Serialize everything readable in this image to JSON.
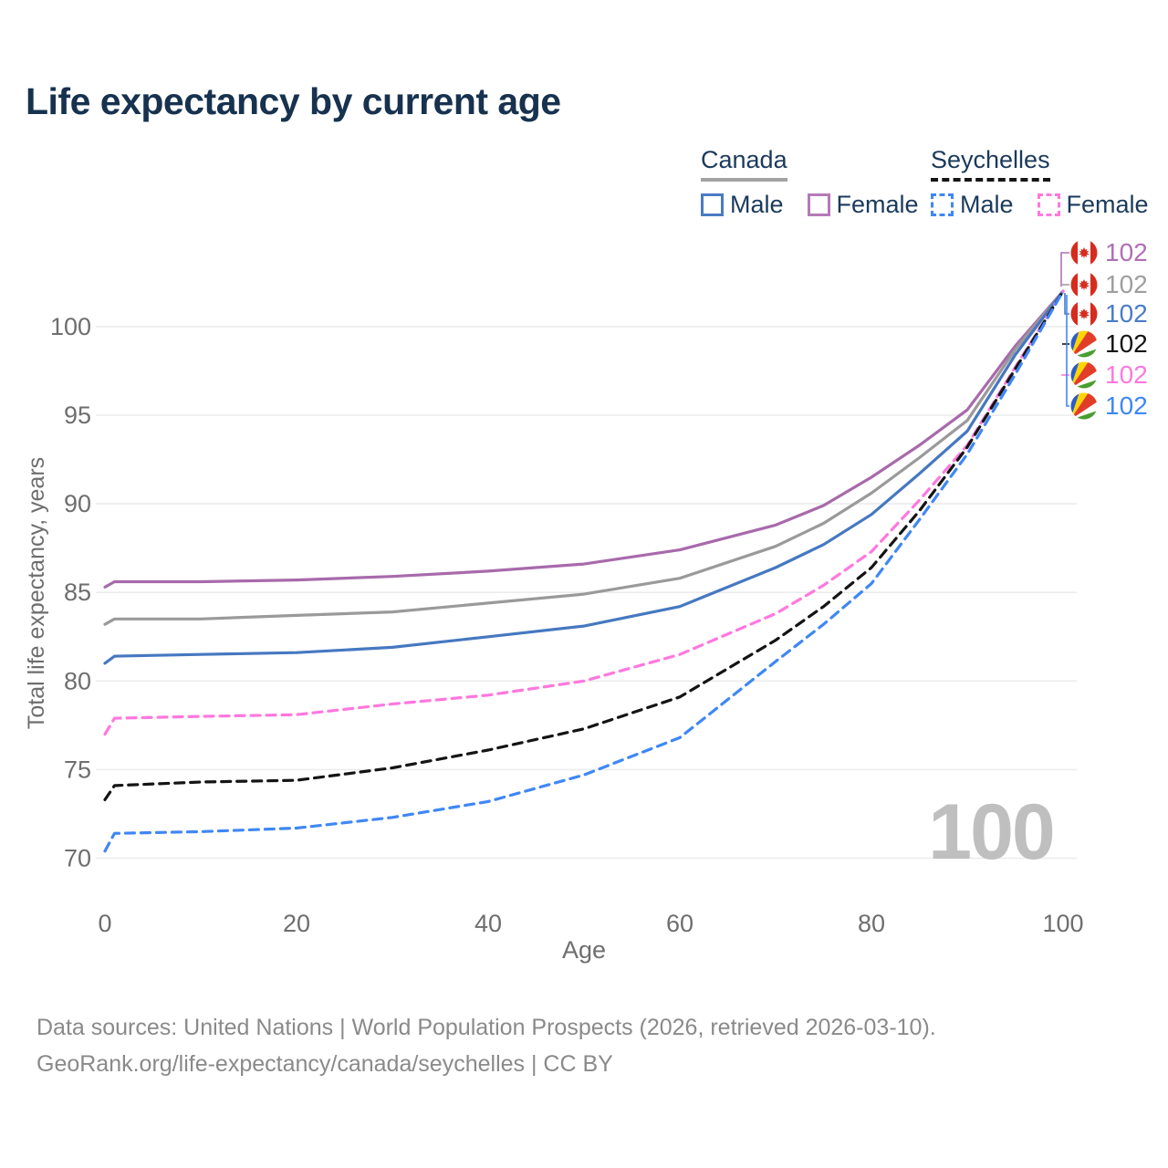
{
  "title": "Life expectancy by current age",
  "legend": {
    "groups": [
      {
        "name": "Canada",
        "line_style": "solid",
        "underline_color": "#a3a3a3",
        "items": [
          {
            "label": "Male",
            "color": "#4a7bc4"
          },
          {
            "label": "Female",
            "color": "#b57ab8"
          }
        ]
      },
      {
        "name": "Seychelles",
        "line_style": "dashed",
        "underline_color": "#151515",
        "items": [
          {
            "label": "Male",
            "color": "#3f87f5"
          },
          {
            "label": "Female",
            "color": "#ff78df"
          }
        ]
      }
    ]
  },
  "chart_data": {
    "type": "line",
    "title": "Life expectancy by current age",
    "xlabel": "Age",
    "ylabel": "Total life expectancy, years",
    "x": [
      0,
      1,
      10,
      20,
      30,
      40,
      50,
      60,
      70,
      75,
      80,
      85,
      90,
      95,
      100
    ],
    "xticks": [
      0,
      20,
      40,
      60,
      80,
      100
    ],
    "yticks": [
      70,
      75,
      80,
      85,
      90,
      95,
      100
    ],
    "xlim": [
      0,
      100
    ],
    "ylim": [
      70,
      102.5
    ],
    "grid": true,
    "legend_position": "top-right",
    "hover_x_watermark": "100",
    "series": [
      {
        "name": "Canada Female",
        "country": "Canada",
        "sex": "Female",
        "style": "solid",
        "color": "#a86aab",
        "end_label": "102",
        "values": [
          85.3,
          85.6,
          85.6,
          85.7,
          85.9,
          86.2,
          86.6,
          87.4,
          88.8,
          89.9,
          91.5,
          93.3,
          95.3,
          98.9,
          102
        ]
      },
      {
        "name": "Canada Both sexes",
        "country": "Canada",
        "sex": "Both",
        "style": "solid",
        "color": "#9a9a9a",
        "end_label": "102",
        "values": [
          83.2,
          83.5,
          83.5,
          83.7,
          83.9,
          84.4,
          84.9,
          85.8,
          87.6,
          88.9,
          90.6,
          92.6,
          94.7,
          98.7,
          102
        ]
      },
      {
        "name": "Canada Male",
        "country": "Canada",
        "sex": "Male",
        "style": "solid",
        "color": "#4678c0",
        "end_label": "102",
        "values": [
          81.0,
          81.4,
          81.5,
          81.6,
          81.9,
          82.5,
          83.1,
          84.2,
          86.4,
          87.7,
          89.4,
          91.7,
          94.1,
          98.4,
          102
        ]
      },
      {
        "name": "Seychelles Female",
        "country": "Seychelles",
        "sex": "Female",
        "style": "dashed",
        "color": "#ff78df",
        "end_label": "102",
        "values": [
          77.0,
          77.9,
          78.0,
          78.1,
          78.7,
          79.2,
          80.0,
          81.5,
          83.8,
          85.4,
          87.3,
          90.2,
          93.3,
          97.7,
          102
        ]
      },
      {
        "name": "Seychelles Both sexes",
        "country": "Seychelles",
        "sex": "Both",
        "style": "dashed",
        "color": "#141414",
        "end_label": "102",
        "values": [
          73.3,
          74.1,
          74.3,
          74.4,
          75.1,
          76.1,
          77.3,
          79.1,
          82.3,
          84.2,
          86.4,
          89.6,
          93.2,
          97.6,
          102
        ]
      },
      {
        "name": "Seychelles Male",
        "country": "Seychelles",
        "sex": "Male",
        "style": "dashed",
        "color": "#3f87f5",
        "end_label": "102",
        "values": [
          70.4,
          71.4,
          71.5,
          71.7,
          72.3,
          73.2,
          74.7,
          76.8,
          81.1,
          83.2,
          85.5,
          89.1,
          92.8,
          97.3,
          102
        ]
      }
    ]
  },
  "end_labels": [
    {
      "flag": "canada",
      "value": "102",
      "color": "#b06fb5"
    },
    {
      "flag": "canada",
      "value": "102",
      "color": "#9e9e9e"
    },
    {
      "flag": "canada",
      "value": "102",
      "color": "#4a7cc7"
    },
    {
      "flag": "seychelles",
      "value": "102",
      "color": "#141414"
    },
    {
      "flag": "seychelles",
      "value": "102",
      "color": "#ff78df"
    },
    {
      "flag": "seychelles",
      "value": "102",
      "color": "#3f87f5"
    }
  ],
  "watermark": "100",
  "footer": {
    "line1": "Data sources: United Nations | World Population Prospects (2026, retrieved 2026-03-10).",
    "line2": "GeoRank.org/life-expectancy/canada/seychelles | CC BY"
  },
  "colors": {
    "title_text": "#17324f",
    "axis_text": "#6e6e6e",
    "gridline": "#ececec",
    "watermark": "#bfbfbf",
    "footer_text": "#8a8a8a"
  }
}
